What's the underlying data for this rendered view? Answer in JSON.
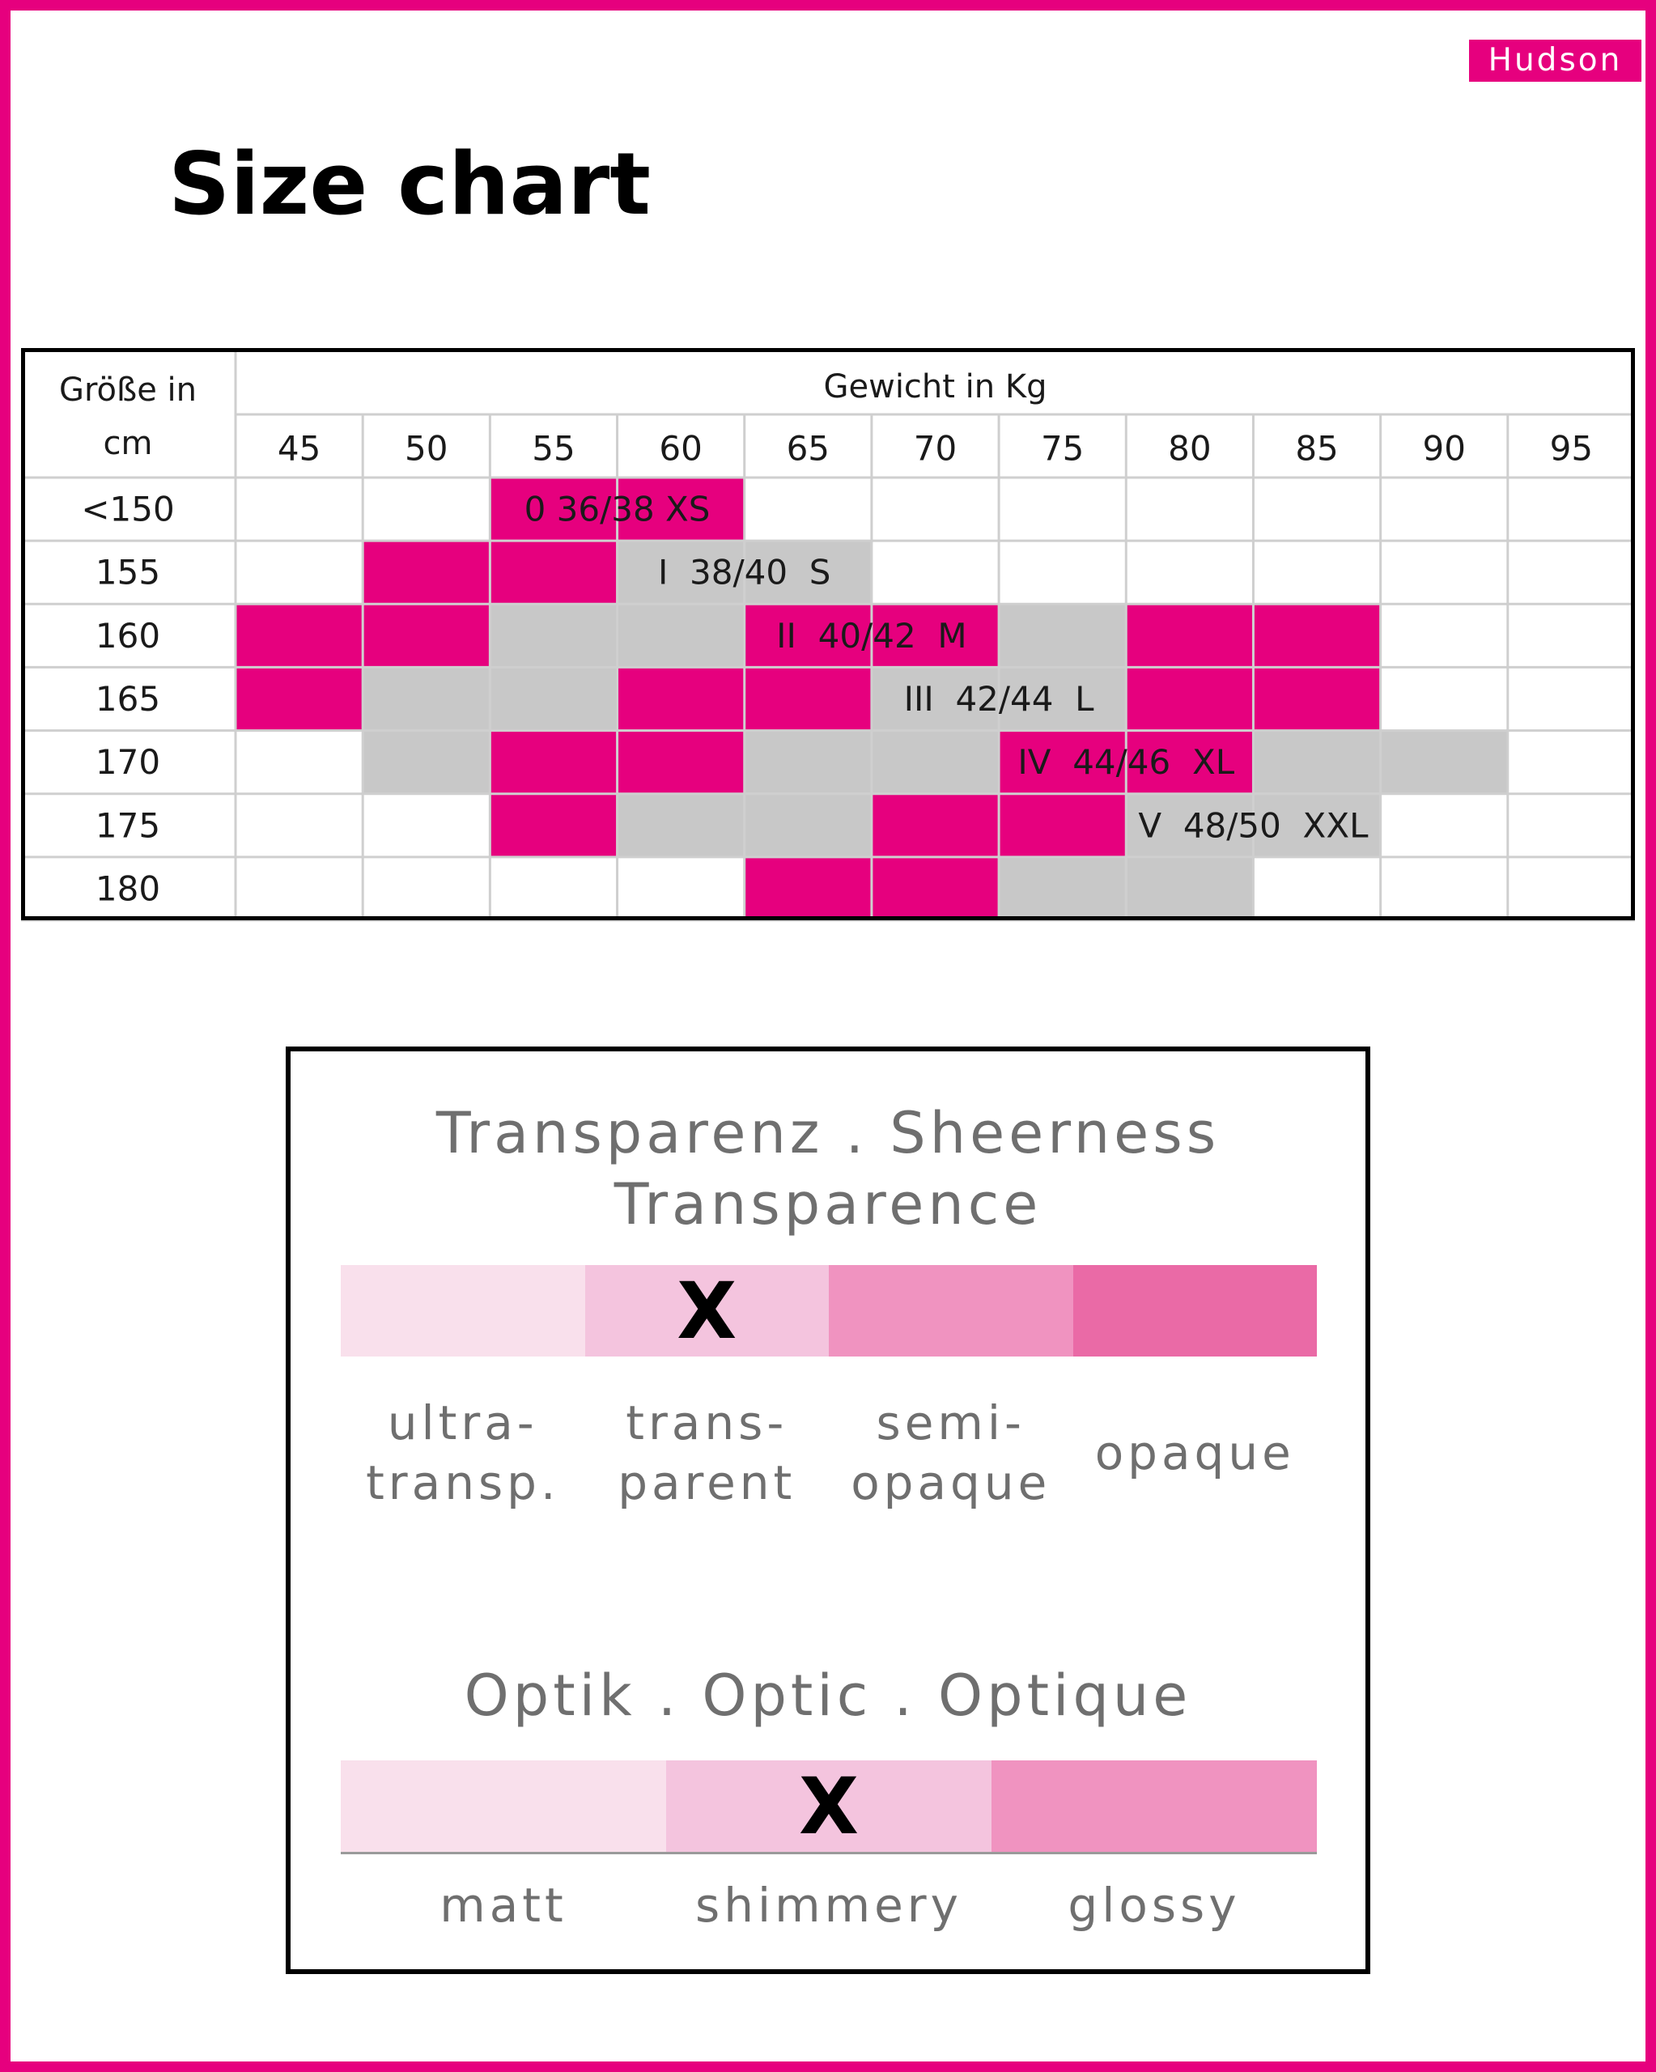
{
  "brand": "Hudson",
  "title": "Size chart",
  "chart_data": {
    "type": "table",
    "corner_header_lines": [
      "Größe in",
      "cm"
    ],
    "weight_header": "Gewicht in Kg",
    "weights": [
      45,
      50,
      55,
      60,
      65,
      70,
      75,
      80,
      85,
      90,
      95
    ],
    "heights": [
      "<150",
      "155",
      "160",
      "165",
      "170",
      "175",
      "180"
    ],
    "colors": {
      "pink": "#e6007e",
      "gray": "#c8c8c8",
      "grid": "#cfcfcf",
      "border": "#000000"
    },
    "size_blocks": [
      {
        "height": "<150",
        "from_kg": 55,
        "to_kg": 60,
        "color": "pink",
        "label": "0 36/38 XS"
      },
      {
        "height": "155",
        "from_kg": 50,
        "to_kg": 55,
        "color": "pink",
        "label": ""
      },
      {
        "height": "155",
        "from_kg": 60,
        "to_kg": 65,
        "color": "gray",
        "label": "I  38/40  S"
      },
      {
        "height": "160",
        "from_kg": 45,
        "to_kg": 50,
        "color": "pink",
        "label": ""
      },
      {
        "height": "160",
        "from_kg": 55,
        "to_kg": 60,
        "color": "gray",
        "label": ""
      },
      {
        "height": "160",
        "from_kg": 65,
        "to_kg": 70,
        "color": "pink",
        "label": "II  40/42  M"
      },
      {
        "height": "160",
        "from_kg": 75,
        "to_kg": 75,
        "color": "gray",
        "label": ""
      },
      {
        "height": "160",
        "from_kg": 80,
        "to_kg": 85,
        "color": "pink",
        "label": ""
      },
      {
        "height": "165",
        "from_kg": 45,
        "to_kg": 45,
        "color": "pink",
        "label": ""
      },
      {
        "height": "165",
        "from_kg": 50,
        "to_kg": 55,
        "color": "gray",
        "label": ""
      },
      {
        "height": "165",
        "from_kg": 60,
        "to_kg": 65,
        "color": "pink",
        "label": ""
      },
      {
        "height": "165",
        "from_kg": 70,
        "to_kg": 75,
        "color": "gray",
        "label": "III  42/44  L"
      },
      {
        "height": "165",
        "from_kg": 80,
        "to_kg": 85,
        "color": "pink",
        "label": ""
      },
      {
        "height": "170",
        "from_kg": 50,
        "to_kg": 50,
        "color": "gray",
        "label": ""
      },
      {
        "height": "170",
        "from_kg": 55,
        "to_kg": 60,
        "color": "pink",
        "label": ""
      },
      {
        "height": "170",
        "from_kg": 65,
        "to_kg": 70,
        "color": "gray",
        "label": ""
      },
      {
        "height": "170",
        "from_kg": 75,
        "to_kg": 80,
        "color": "pink",
        "label": "IV  44/46  XL"
      },
      {
        "height": "170",
        "from_kg": 85,
        "to_kg": 90,
        "color": "gray",
        "label": ""
      },
      {
        "height": "175",
        "from_kg": 55,
        "to_kg": 55,
        "color": "pink",
        "label": ""
      },
      {
        "height": "175",
        "from_kg": 60,
        "to_kg": 65,
        "color": "gray",
        "label": ""
      },
      {
        "height": "175",
        "from_kg": 70,
        "to_kg": 75,
        "color": "pink",
        "label": ""
      },
      {
        "height": "175",
        "from_kg": 80,
        "to_kg": 85,
        "color": "gray",
        "label": "V  48/50  XXL"
      },
      {
        "height": "180",
        "from_kg": 65,
        "to_kg": 70,
        "color": "pink",
        "label": ""
      },
      {
        "height": "180",
        "from_kg": 75,
        "to_kg": 80,
        "color": "gray",
        "label": ""
      }
    ]
  },
  "sheerness": {
    "heading_line1": "Transparenz . Sheerness",
    "heading_line2": "Transparence",
    "levels": [
      {
        "line1": "ultra-",
        "line2": "transp.",
        "color": "#f9e0ec"
      },
      {
        "line1": "trans-",
        "line2": "parent",
        "color": "#f4c4de"
      },
      {
        "line1": "semi-",
        "line2": "opaque",
        "color": "#f093c0"
      },
      {
        "line1": "opaque",
        "line2": "",
        "color": "#ea6aa6"
      }
    ],
    "selected_index": 1,
    "mark": "X"
  },
  "optic": {
    "heading": "Optik . Optic . Optique",
    "levels": [
      {
        "label": "matt",
        "color": "#f9e0ec"
      },
      {
        "label": "shimmery",
        "color": "#f4c4de"
      },
      {
        "label": "glossy",
        "color": "#f093c0"
      }
    ],
    "selected_index": 1,
    "mark": "X"
  }
}
